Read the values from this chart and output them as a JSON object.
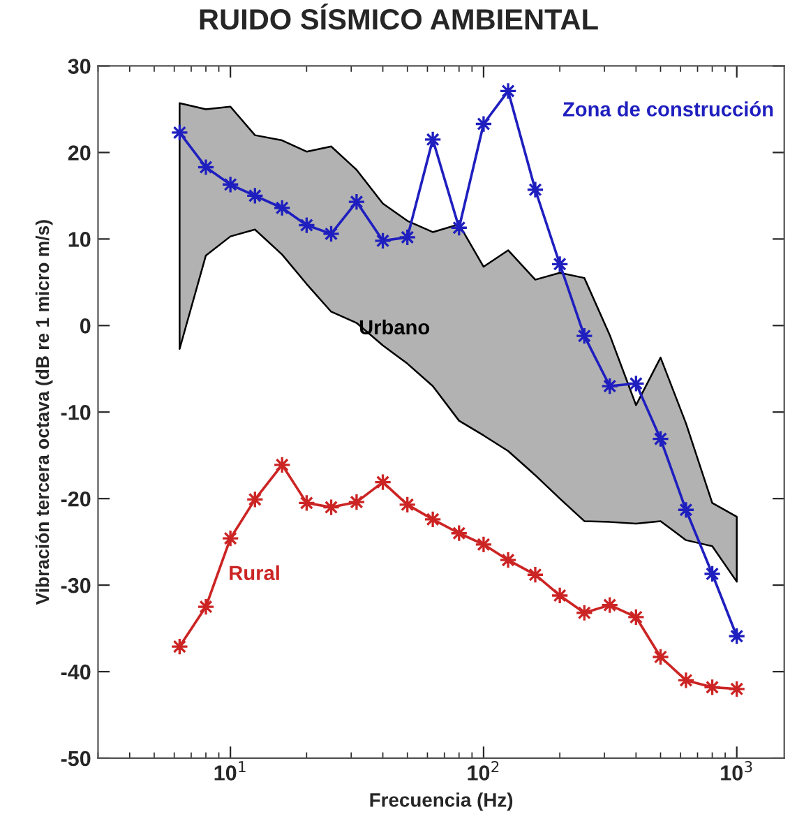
{
  "chart_data": {
    "type": "line",
    "title": "RUIDO SÍSMICO AMBIENTAL",
    "xlabel": "Frecuencia (Hz)",
    "ylabel": "Vibración tercera octava (dB re 1 micro m/s)",
    "x": [
      6.3,
      8,
      10,
      12.5,
      16,
      20,
      25,
      31.5,
      40,
      50,
      63,
      80,
      100,
      125,
      160,
      200,
      250,
      315,
      400,
      500,
      630,
      800,
      1000
    ],
    "series": [
      {
        "name": "Urbano",
        "values": [
          null,
          null,
          null,
          null,
          null,
          null,
          null,
          null,
          null,
          null,
          null,
          null,
          null,
          null,
          null,
          null,
          null,
          null,
          null,
          null,
          null,
          null,
          null
        ],
        "upper": [
          25.7,
          25.0,
          25.3,
          22.0,
          21.4,
          20.1,
          20.7,
          18.0,
          14.1,
          12.1,
          10.8,
          11.7,
          6.8,
          8.7,
          5.3,
          6.1,
          5.5,
          -1.1,
          -9.2,
          -3.7,
          -11.3,
          -20.5,
          -22.1
        ],
        "lower": [
          -2.7,
          8.1,
          10.3,
          11.1,
          8.2,
          4.8,
          1.6,
          0.3,
          -2.3,
          -4.4,
          -7.0,
          -11.0,
          -12.7,
          -14.5,
          -17.3,
          -20.0,
          -22.6,
          -22.7,
          -22.9,
          -22.6,
          -24.8,
          -25.5,
          -29.6
        ]
      },
      {
        "name": "Zona de construcción",
        "marker": "star",
        "color": "#1f1fbf",
        "values": [
          22.3,
          18.3,
          16.3,
          15.0,
          13.6,
          11.6,
          10.6,
          14.3,
          9.8,
          10.2,
          21.5,
          11.3,
          23.3,
          27.1,
          15.7,
          7.1,
          -1.2,
          -7.0,
          -6.7,
          -13.1,
          -21.3,
          -28.7,
          -35.9
        ]
      },
      {
        "name": "Rural",
        "marker": "star",
        "color": "#cc2424",
        "values": [
          -37.1,
          -32.5,
          -24.6,
          -20.1,
          -16.1,
          -20.5,
          -21.0,
          -20.4,
          -18.1,
          -20.7,
          -22.4,
          -24.0,
          -25.3,
          -27.1,
          -28.8,
          -31.2,
          -33.2,
          -32.3,
          -33.7,
          -38.3,
          -41.0,
          -41.8,
          -42.0
        ]
      }
    ],
    "log": "x",
    "xlim": [
      3,
      1540
    ],
    "xticks": [
      {
        "value": 10,
        "label": "10$^{1}$"
      },
      {
        "value": 100,
        "label": "10$^{2}$"
      },
      {
        "value": 1000,
        "label": "10$^{3}$"
      }
    ],
    "ylim": [
      -50,
      30
    ],
    "yticks": [
      -50,
      -40,
      -30,
      -20,
      -10,
      0,
      10,
      20,
      30
    ],
    "grid": false,
    "legend": false,
    "line_style": "solid"
  }
}
